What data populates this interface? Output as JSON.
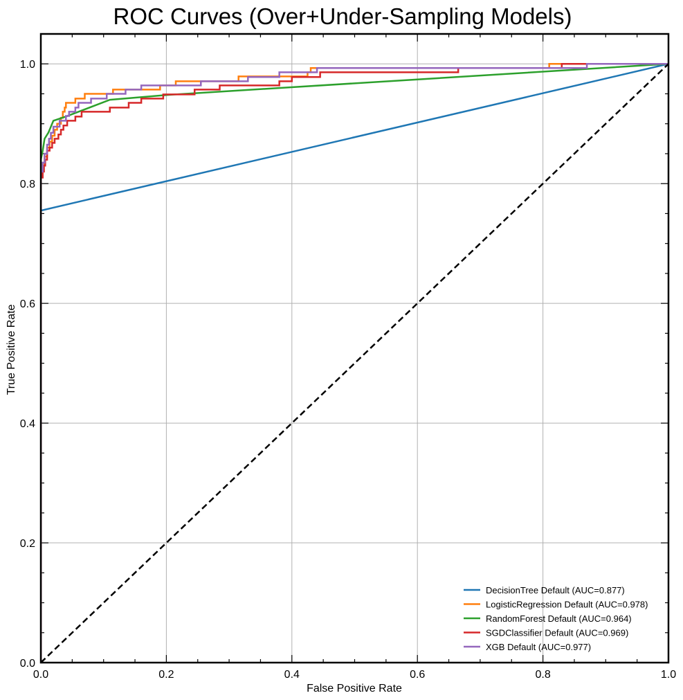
{
  "chart_data": {
    "type": "line",
    "title": "ROC Curves (Over+Under-Sampling Models)",
    "xlabel": "False Positive Rate",
    "ylabel": "True Positive Rate",
    "xlim": [
      0,
      1
    ],
    "ylim": [
      0,
      1.05
    ],
    "x_ticks": [
      "0.0",
      "0.2",
      "0.4",
      "0.6",
      "0.8",
      "1.0"
    ],
    "y_ticks": [
      "0.0",
      "0.2",
      "0.4",
      "0.6",
      "0.8",
      "1.0"
    ],
    "grid": true,
    "legend_position": "lower-right",
    "series": [
      {
        "name": "DecisionTree Default (AUC=0.877)",
        "color": "#1f77b4",
        "points": [
          [
            0,
            0
          ],
          [
            0,
            0.755
          ],
          [
            1,
            1
          ]
        ]
      },
      {
        "name": "LogisticRegression Default (AUC=0.978)",
        "color": "#ff7f0e",
        "points": [
          [
            0,
            0
          ],
          [
            0,
            0.81
          ],
          [
            0.003,
            0.82
          ],
          [
            0.003,
            0.83
          ],
          [
            0.006,
            0.83
          ],
          [
            0.006,
            0.845
          ],
          [
            0.01,
            0.845
          ],
          [
            0.01,
            0.86
          ],
          [
            0.014,
            0.86
          ],
          [
            0.014,
            0.87
          ],
          [
            0.018,
            0.87
          ],
          [
            0.018,
            0.88
          ],
          [
            0.022,
            0.88
          ],
          [
            0.022,
            0.89
          ],
          [
            0.026,
            0.89
          ],
          [
            0.026,
            0.9
          ],
          [
            0.032,
            0.9
          ],
          [
            0.032,
            0.91
          ],
          [
            0.035,
            0.91
          ],
          [
            0.035,
            0.92
          ],
          [
            0.038,
            0.92
          ],
          [
            0.038,
            0.927
          ],
          [
            0.04,
            0.927
          ],
          [
            0.04,
            0.935
          ],
          [
            0.055,
            0.935
          ],
          [
            0.055,
            0.942
          ],
          [
            0.07,
            0.942
          ],
          [
            0.07,
            0.95
          ],
          [
            0.115,
            0.95
          ],
          [
            0.115,
            0.957
          ],
          [
            0.19,
            0.957
          ],
          [
            0.19,
            0.964
          ],
          [
            0.215,
            0.964
          ],
          [
            0.215,
            0.971
          ],
          [
            0.315,
            0.971
          ],
          [
            0.315,
            0.979
          ],
          [
            0.425,
            0.979
          ],
          [
            0.425,
            0.986
          ],
          [
            0.43,
            0.986
          ],
          [
            0.43,
            0.993
          ],
          [
            0.81,
            0.993
          ],
          [
            0.81,
            1.0
          ],
          [
            1,
            1
          ]
        ]
      },
      {
        "name": "RandomForest Default (AUC=0.964)",
        "color": "#2ca02c",
        "points": [
          [
            0,
            0
          ],
          [
            0,
            0.84
          ],
          [
            0.003,
            0.855
          ],
          [
            0.006,
            0.875
          ],
          [
            0.012,
            0.885
          ],
          [
            0.02,
            0.905
          ],
          [
            0.04,
            0.912
          ],
          [
            0.11,
            0.94
          ],
          [
            0.2,
            0.948
          ],
          [
            1,
            1
          ]
        ]
      },
      {
        "name": "SGDClassifier Default (AUC=0.969)",
        "color": "#d62728",
        "points": [
          [
            0,
            0
          ],
          [
            0,
            0.81
          ],
          [
            0.003,
            0.81
          ],
          [
            0.003,
            0.82
          ],
          [
            0.005,
            0.82
          ],
          [
            0.005,
            0.83
          ],
          [
            0.007,
            0.83
          ],
          [
            0.007,
            0.84
          ],
          [
            0.01,
            0.84
          ],
          [
            0.01,
            0.855
          ],
          [
            0.014,
            0.855
          ],
          [
            0.014,
            0.86
          ],
          [
            0.018,
            0.86
          ],
          [
            0.018,
            0.868
          ],
          [
            0.022,
            0.868
          ],
          [
            0.022,
            0.875
          ],
          [
            0.028,
            0.875
          ],
          [
            0.028,
            0.882
          ],
          [
            0.032,
            0.882
          ],
          [
            0.032,
            0.89
          ],
          [
            0.036,
            0.89
          ],
          [
            0.036,
            0.897
          ],
          [
            0.042,
            0.897
          ],
          [
            0.042,
            0.905
          ],
          [
            0.055,
            0.905
          ],
          [
            0.055,
            0.912
          ],
          [
            0.065,
            0.912
          ],
          [
            0.065,
            0.92
          ],
          [
            0.11,
            0.92
          ],
          [
            0.11,
            0.927
          ],
          [
            0.14,
            0.927
          ],
          [
            0.14,
            0.935
          ],
          [
            0.16,
            0.935
          ],
          [
            0.16,
            0.942
          ],
          [
            0.195,
            0.942
          ],
          [
            0.195,
            0.949
          ],
          [
            0.245,
            0.949
          ],
          [
            0.245,
            0.957
          ],
          [
            0.285,
            0.957
          ],
          [
            0.285,
            0.964
          ],
          [
            0.38,
            0.964
          ],
          [
            0.38,
            0.971
          ],
          [
            0.4,
            0.971
          ],
          [
            0.4,
            0.978
          ],
          [
            0.445,
            0.978
          ],
          [
            0.445,
            0.986
          ],
          [
            0.665,
            0.986
          ],
          [
            0.665,
            0.993
          ],
          [
            0.83,
            0.993
          ],
          [
            0.83,
            1.0
          ],
          [
            1,
            1
          ]
        ]
      },
      {
        "name": "XGB Default (AUC=0.977)",
        "color": "#9467bd",
        "points": [
          [
            0,
            0
          ],
          [
            0,
            0.82
          ],
          [
            0.003,
            0.82
          ],
          [
            0.003,
            0.835
          ],
          [
            0.006,
            0.835
          ],
          [
            0.006,
            0.85
          ],
          [
            0.01,
            0.85
          ],
          [
            0.01,
            0.865
          ],
          [
            0.013,
            0.865
          ],
          [
            0.013,
            0.875
          ],
          [
            0.016,
            0.875
          ],
          [
            0.016,
            0.885
          ],
          [
            0.02,
            0.885
          ],
          [
            0.02,
            0.895
          ],
          [
            0.03,
            0.895
          ],
          [
            0.03,
            0.905
          ],
          [
            0.04,
            0.905
          ],
          [
            0.04,
            0.913
          ],
          [
            0.045,
            0.913
          ],
          [
            0.045,
            0.92
          ],
          [
            0.055,
            0.92
          ],
          [
            0.055,
            0.927
          ],
          [
            0.06,
            0.927
          ],
          [
            0.06,
            0.935
          ],
          [
            0.08,
            0.935
          ],
          [
            0.08,
            0.942
          ],
          [
            0.105,
            0.942
          ],
          [
            0.105,
            0.95
          ],
          [
            0.135,
            0.95
          ],
          [
            0.135,
            0.957
          ],
          [
            0.16,
            0.957
          ],
          [
            0.16,
            0.964
          ],
          [
            0.255,
            0.964
          ],
          [
            0.255,
            0.971
          ],
          [
            0.33,
            0.971
          ],
          [
            0.33,
            0.978
          ],
          [
            0.38,
            0.978
          ],
          [
            0.38,
            0.986
          ],
          [
            0.44,
            0.986
          ],
          [
            0.44,
            0.993
          ],
          [
            0.87,
            0.993
          ],
          [
            0.87,
            1.0
          ],
          [
            1,
            1
          ]
        ]
      }
    ],
    "reference_line": {
      "color": "#000000",
      "dashed": true,
      "points": [
        [
          0,
          0
        ],
        [
          1,
          1
        ]
      ]
    }
  }
}
